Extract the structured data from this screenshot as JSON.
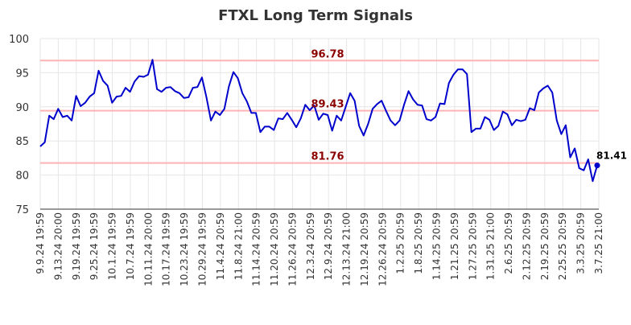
{
  "chart_data": {
    "type": "line",
    "title": "FTXL Long Term Signals",
    "xlabel": "",
    "ylabel": "",
    "ylim": [
      75,
      100
    ],
    "yticks": [
      75,
      80,
      85,
      90,
      95,
      100
    ],
    "grid": true,
    "x_tick_labels": [
      "9.9.24 19:59",
      "9.13.24 20:00",
      "9.19.24 19:59",
      "9.25.24 19:59",
      "10.1.24 19:59",
      "10.7.24 19:59",
      "10.11.24 20:00",
      "10.17.24 19:59",
      "10.23.24 19:59",
      "10.29.24 19:59",
      "11.4.24 20:59",
      "11.8.24 21:00",
      "11.14.24 20:59",
      "11.20.24 20:59",
      "11.26.24 20:59",
      "12.3.24 20:59",
      "12.9.24 20:59",
      "12.13.24 21:00",
      "12.19.24 20:59",
      "12.26.24 20:59",
      "1.2.25 20:59",
      "1.8.25 20:59",
      "1.14.25 20:59",
      "1.21.25 20:59",
      "1.27.25 20:59",
      "1.31.25 21:00",
      "2.6.25 20:59",
      "2.12.25 20:59",
      "2.19.25 20:59",
      "2.25.25 20:59",
      "3.3.25 20:59",
      "3.7.25 21:00"
    ],
    "series": [
      {
        "color": "#0000cc",
        "values": [
          84.2,
          84.8,
          88.7,
          88.2,
          89.7,
          88.5,
          88.7,
          88.0,
          91.6,
          90.1,
          90.6,
          91.5,
          92.0,
          95.3,
          93.8,
          93.1,
          90.6,
          91.5,
          91.6,
          92.8,
          92.2,
          93.7,
          94.5,
          94.4,
          94.7,
          96.9,
          92.6,
          92.2,
          92.8,
          92.9,
          92.3,
          92.0,
          91.3,
          91.4,
          92.8,
          92.9,
          94.3,
          91.4,
          88.0,
          89.3,
          88.8,
          89.7,
          93.0,
          95.1,
          94.2,
          92.0,
          90.8,
          89.1,
          89.1,
          86.3,
          87.1,
          87.1,
          86.6,
          88.3,
          88.2,
          89.1,
          88.1,
          87.0,
          88.3,
          90.3,
          89.5,
          90.2,
          88.1,
          89.0,
          88.8,
          86.5,
          88.7,
          88.0,
          90.0,
          92.0,
          90.9,
          87.2,
          85.8,
          87.5,
          89.7,
          90.4,
          90.9,
          89.4,
          88.0,
          87.3,
          88.0,
          90.3,
          92.3,
          91.1,
          90.3,
          90.2,
          88.2,
          88.0,
          88.5,
          90.5,
          90.4,
          93.5,
          94.7,
          95.5,
          95.5,
          94.8,
          86.3,
          86.8,
          86.8,
          88.5,
          88.1,
          86.6,
          87.2,
          89.3,
          88.9,
          87.3,
          88.1,
          87.9,
          88.1,
          89.8,
          89.5,
          92.1,
          92.7,
          93.1,
          92.1,
          88.0,
          86.0,
          87.3,
          82.6,
          83.9,
          81.0,
          80.7,
          82.3,
          79.1,
          81.41
        ]
      }
    ],
    "reference_lines": [
      {
        "value": 96.78,
        "label": "96.78",
        "color": "#ffb3b3"
      },
      {
        "value": 89.43,
        "label": "89.43",
        "color": "#ffb3b3"
      },
      {
        "value": 81.76,
        "label": "81.76",
        "color": "#ffb3b3"
      }
    ],
    "last_value_label": "81.41",
    "label_color": "#8b0000"
  }
}
